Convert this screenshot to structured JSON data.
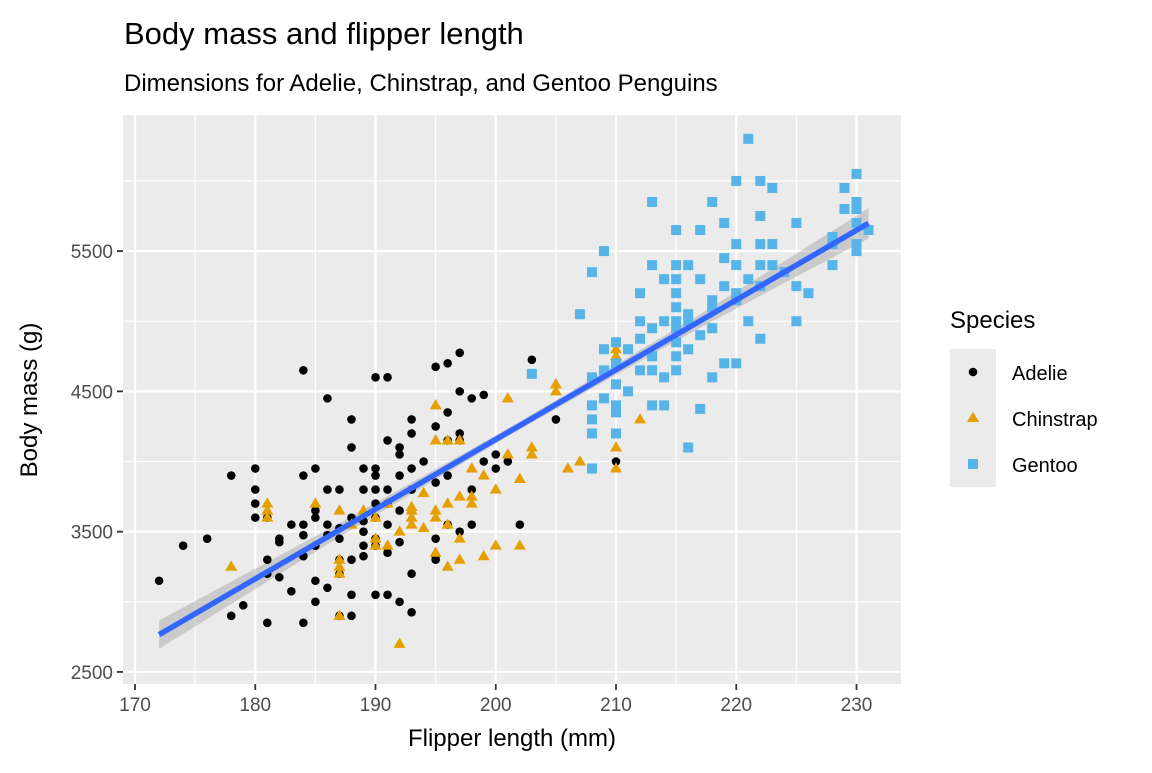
{
  "chart_data": {
    "type": "scatter",
    "title": "Body mass and flipper length",
    "subtitle": "Dimensions for Adelie, Chinstrap, and Gentoo Penguins",
    "xlabel": "Flipper length (mm)",
    "ylabel": "Body mass (g)",
    "xlim": [
      169,
      233.7
    ],
    "ylim": [
      2414,
      6470
    ],
    "x_ticks": [
      170,
      180,
      190,
      200,
      210,
      220,
      230
    ],
    "y_ticks": [
      2500,
      3500,
      4500,
      5500
    ],
    "x_tick_labels": [
      "170",
      "180",
      "190",
      "200",
      "210",
      "220",
      "230"
    ],
    "y_tick_labels": [
      "2500",
      "3500",
      "4500",
      "5500"
    ],
    "grid": true,
    "background": "#ebebeb",
    "legend": {
      "title": "Species",
      "placement": "right"
    },
    "series": [
      {
        "name": "Adelie",
        "color": "#000000",
        "shape": "circle",
        "points": [
          [
            172,
            3150
          ],
          [
            174,
            3400
          ],
          [
            176,
            3450
          ],
          [
            178,
            3900
          ],
          [
            178,
            2900
          ],
          [
            179,
            2975
          ],
          [
            180,
            3950
          ],
          [
            180,
            3800
          ],
          [
            180,
            3700
          ],
          [
            180,
            3600
          ],
          [
            181,
            2850
          ],
          [
            181,
            3300
          ],
          [
            181,
            3200
          ],
          [
            181,
            3600
          ],
          [
            182,
            3425
          ],
          [
            182,
            3175
          ],
          [
            182,
            3450
          ],
          [
            183,
            3550
          ],
          [
            183,
            3075
          ],
          [
            184,
            4650
          ],
          [
            184,
            3900
          ],
          [
            184,
            3550
          ],
          [
            184,
            3475
          ],
          [
            184,
            3325
          ],
          [
            184,
            2850
          ],
          [
            185,
            3950
          ],
          [
            185,
            3650
          ],
          [
            185,
            3600
          ],
          [
            185,
            3400
          ],
          [
            185,
            3150
          ],
          [
            185,
            3000
          ],
          [
            186,
            4450
          ],
          [
            186,
            3800
          ],
          [
            186,
            3550
          ],
          [
            186,
            3475
          ],
          [
            186,
            3100
          ],
          [
            187,
            3800
          ],
          [
            187,
            3525
          ],
          [
            187,
            3450
          ],
          [
            187,
            3300
          ],
          [
            187,
            3200
          ],
          [
            187,
            2900
          ],
          [
            188,
            4300
          ],
          [
            188,
            4100
          ],
          [
            188,
            3600
          ],
          [
            188,
            3300
          ],
          [
            188,
            3050
          ],
          [
            188,
            2900
          ],
          [
            189,
            3950
          ],
          [
            189,
            3800
          ],
          [
            189,
            3575
          ],
          [
            189,
            3500
          ],
          [
            189,
            3400
          ],
          [
            189,
            3325
          ],
          [
            190,
            4600
          ],
          [
            190,
            3950
          ],
          [
            190,
            3900
          ],
          [
            190,
            3800
          ],
          [
            190,
            3700
          ],
          [
            190,
            3600
          ],
          [
            190,
            3450
          ],
          [
            190,
            3400
          ],
          [
            190,
            3050
          ],
          [
            191,
            4600
          ],
          [
            191,
            4150
          ],
          [
            191,
            3800
          ],
          [
            191,
            3700
          ],
          [
            191,
            3550
          ],
          [
            191,
            3350
          ],
          [
            191,
            3050
          ],
          [
            192,
            4100
          ],
          [
            192,
            4050
          ],
          [
            192,
            3900
          ],
          [
            192,
            3650
          ],
          [
            192,
            3425
          ],
          [
            192,
            3000
          ],
          [
            193,
            4300
          ],
          [
            193,
            4200
          ],
          [
            193,
            3950
          ],
          [
            193,
            3800
          ],
          [
            193,
            3200
          ],
          [
            193,
            2925
          ],
          [
            194,
            4000
          ],
          [
            195,
            4675
          ],
          [
            195,
            4250
          ],
          [
            195,
            3850
          ],
          [
            195,
            3450
          ],
          [
            195,
            3325
          ],
          [
            195,
            3300
          ],
          [
            196,
            4700
          ],
          [
            196,
            4350
          ],
          [
            196,
            4150
          ],
          [
            196,
            3900
          ],
          [
            196,
            3550
          ],
          [
            197,
            4775
          ],
          [
            197,
            4500
          ],
          [
            197,
            4200
          ],
          [
            197,
            4150
          ],
          [
            197,
            3500
          ],
          [
            198,
            4450
          ],
          [
            198,
            3800
          ],
          [
            198,
            3550
          ],
          [
            199,
            4475
          ],
          [
            199,
            4000
          ],
          [
            200,
            4050
          ],
          [
            200,
            3950
          ],
          [
            201,
            4000
          ],
          [
            202,
            3550
          ],
          [
            203,
            4725
          ],
          [
            205,
            4300
          ],
          [
            210,
            4000
          ]
        ]
      },
      {
        "name": "Chinstrap",
        "color": "#E69F00",
        "shape": "triangle",
        "points": [
          [
            178,
            3250
          ],
          [
            181,
            3700
          ],
          [
            181,
            3650
          ],
          [
            181,
            3600
          ],
          [
            185,
            3700
          ],
          [
            187,
            3650
          ],
          [
            187,
            3300
          ],
          [
            187,
            3250
          ],
          [
            187,
            3200
          ],
          [
            187,
            2900
          ],
          [
            188,
            3550
          ],
          [
            189,
            3650
          ],
          [
            190,
            3450
          ],
          [
            190,
            3400
          ],
          [
            190,
            3600
          ],
          [
            191,
            3400
          ],
          [
            191,
            3700
          ],
          [
            192,
            2700
          ],
          [
            192,
            3500
          ],
          [
            193,
            3650
          ],
          [
            193,
            3600
          ],
          [
            193,
            3550
          ],
          [
            193,
            3675
          ],
          [
            194,
            3525
          ],
          [
            194,
            3775
          ],
          [
            195,
            4400
          ],
          [
            195,
            4150
          ],
          [
            195,
            3650
          ],
          [
            195,
            3350
          ],
          [
            195,
            3600
          ],
          [
            196,
            4150
          ],
          [
            196,
            3700
          ],
          [
            196,
            3550
          ],
          [
            196,
            3250
          ],
          [
            197,
            4150
          ],
          [
            197,
            3750
          ],
          [
            197,
            3450
          ],
          [
            197,
            3300
          ],
          [
            198,
            3950
          ],
          [
            198,
            3700
          ],
          [
            198,
            3750
          ],
          [
            199,
            3900
          ],
          [
            199,
            3325
          ],
          [
            200,
            3800
          ],
          [
            200,
            3400
          ],
          [
            201,
            4450
          ],
          [
            201,
            4050
          ],
          [
            202,
            3875
          ],
          [
            202,
            3400
          ],
          [
            203,
            4100
          ],
          [
            203,
            4050
          ],
          [
            205,
            4550
          ],
          [
            205,
            4500
          ],
          [
            206,
            3950
          ],
          [
            207,
            4000
          ],
          [
            210,
            4800
          ],
          [
            210,
            4750
          ],
          [
            210,
            4100
          ],
          [
            210,
            3950
          ],
          [
            212,
            4300
          ]
        ]
      },
      {
        "name": "Gentoo",
        "color": "#56B4E9",
        "shape": "square",
        "points": [
          [
            203,
            4625
          ],
          [
            207,
            5050
          ],
          [
            208,
            5350
          ],
          [
            208,
            4600
          ],
          [
            208,
            4400
          ],
          [
            208,
            4300
          ],
          [
            208,
            4200
          ],
          [
            208,
            3950
          ],
          [
            209,
            5500
          ],
          [
            209,
            4800
          ],
          [
            209,
            4650
          ],
          [
            209,
            4450
          ],
          [
            210,
            4850
          ],
          [
            210,
            4700
          ],
          [
            210,
            4550
          ],
          [
            210,
            4400
          ],
          [
            210,
            4350
          ],
          [
            210,
            4200
          ],
          [
            211,
            4800
          ],
          [
            211,
            4500
          ],
          [
            212,
            5200
          ],
          [
            212,
            5000
          ],
          [
            212,
            4875
          ],
          [
            212,
            4650
          ],
          [
            213,
            5850
          ],
          [
            213,
            5400
          ],
          [
            213,
            4950
          ],
          [
            213,
            4750
          ],
          [
            213,
            4650
          ],
          [
            213,
            4400
          ],
          [
            214,
            5300
          ],
          [
            214,
            5000
          ],
          [
            214,
            4600
          ],
          [
            214,
            4400
          ],
          [
            215,
            5650
          ],
          [
            215,
            5400
          ],
          [
            215,
            5300
          ],
          [
            215,
            5200
          ],
          [
            215,
            5100
          ],
          [
            215,
            5000
          ],
          [
            215,
            4950
          ],
          [
            215,
            4850
          ],
          [
            215,
            4750
          ],
          [
            215,
            4650
          ],
          [
            216,
            5400
          ],
          [
            216,
            5050
          ],
          [
            216,
            5000
          ],
          [
            216,
            4800
          ],
          [
            216,
            4100
          ],
          [
            217,
            5650
          ],
          [
            217,
            5300
          ],
          [
            217,
            4900
          ],
          [
            217,
            4375
          ],
          [
            218,
            5850
          ],
          [
            218,
            5150
          ],
          [
            218,
            5100
          ],
          [
            218,
            4950
          ],
          [
            218,
            4600
          ],
          [
            219,
            5700
          ],
          [
            219,
            5450
          ],
          [
            219,
            5250
          ],
          [
            219,
            4700
          ],
          [
            220,
            6000
          ],
          [
            220,
            5550
          ],
          [
            220,
            5400
          ],
          [
            220,
            5200
          ],
          [
            220,
            5150
          ],
          [
            220,
            4700
          ],
          [
            221,
            6300
          ],
          [
            221,
            5300
          ],
          [
            221,
            5000
          ],
          [
            222,
            6000
          ],
          [
            222,
            5750
          ],
          [
            222,
            5550
          ],
          [
            222,
            5400
          ],
          [
            222,
            5250
          ],
          [
            222,
            4875
          ],
          [
            223,
            5950
          ],
          [
            223,
            5550
          ],
          [
            223,
            5400
          ],
          [
            224,
            5350
          ],
          [
            225,
            5700
          ],
          [
            225,
            5250
          ],
          [
            225,
            5000
          ],
          [
            226,
            5200
          ],
          [
            228,
            5600
          ],
          [
            228,
            5550
          ],
          [
            228,
            5400
          ],
          [
            229,
            5950
          ],
          [
            229,
            5800
          ],
          [
            230,
            6050
          ],
          [
            230,
            5850
          ],
          [
            230,
            5800
          ],
          [
            230,
            5700
          ],
          [
            230,
            5550
          ],
          [
            230,
            5500
          ],
          [
            231,
            5650
          ]
        ]
      }
    ],
    "smooth": {
      "method": "lm",
      "color": "#3366FF",
      "x": [
        172,
        186.75,
        201.5,
        216.25,
        231
      ],
      "y": [
        2766,
        3499,
        4232,
        4965,
        5698
      ],
      "ci_lower": [
        2665,
        3450,
        4205,
        4920,
        5590
      ],
      "ci_upper": [
        2867,
        3548,
        4259,
        5010,
        5806
      ]
    }
  }
}
